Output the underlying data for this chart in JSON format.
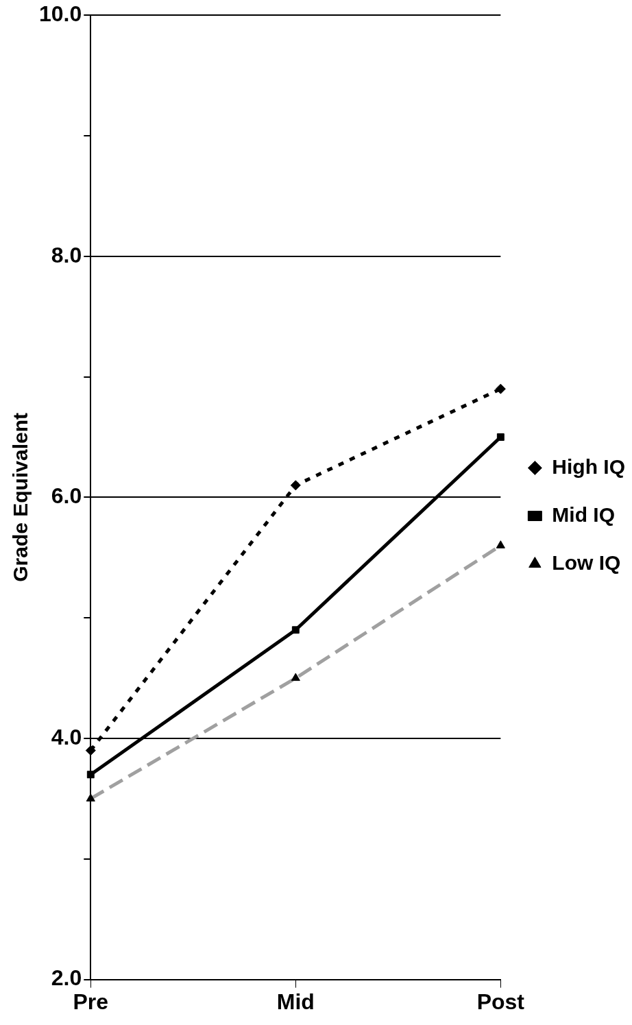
{
  "chart_data": {
    "type": "line",
    "ylabel": "Grade Equivalent",
    "categories": [
      "Pre",
      "Mid",
      "Post"
    ],
    "series": [
      {
        "name": "High IQ",
        "color": "#000000",
        "values": [
          3.9,
          6.1,
          6.9
        ],
        "marker": "diamond",
        "line_style": "dotted"
      },
      {
        "name": "Mid IQ",
        "color": "#000000",
        "values": [
          3.7,
          4.9,
          6.5
        ],
        "marker": "square",
        "line_style": "solid"
      },
      {
        "name": "Low IQ",
        "color": "#a0a0a0",
        "values": [
          3.5,
          4.5,
          5.6
        ],
        "marker": "triangle",
        "line_style": "dashed"
      }
    ],
    "ylim": [
      2,
      10
    ],
    "yticks": [
      {
        "value": 2,
        "label": "2.0"
      },
      {
        "value": 3,
        "label": null
      },
      {
        "value": 4,
        "label": "4.0"
      },
      {
        "value": 5,
        "label": null
      },
      {
        "value": 6,
        "label": "6.0"
      },
      {
        "value": 7,
        "label": null
      },
      {
        "value": 8,
        "label": "8.0"
      },
      {
        "value": 9,
        "label": null
      },
      {
        "value": 10,
        "label": "10.0"
      }
    ],
    "grid": "y",
    "legend": "right"
  }
}
